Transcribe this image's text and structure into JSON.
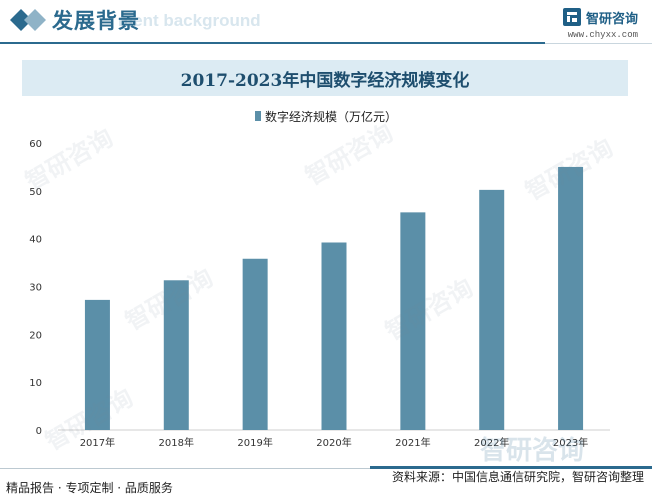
{
  "header": {
    "section_title": "发展背景",
    "section_title_ghost": "ment background",
    "brand_name": "智研咨询",
    "brand_url": "www.chyxx.com"
  },
  "chart_data": {
    "type": "bar",
    "title": "2017-2023年中国数字经济规模变化",
    "categories": [
      "2017年",
      "2018年",
      "2019年",
      "2020年",
      "2021年",
      "2022年",
      "2023年"
    ],
    "series": [
      {
        "name": "数字经济规模（万亿元）",
        "values": [
          27.2,
          31.3,
          35.8,
          39.2,
          45.5,
          50.2,
          55.0
        ],
        "color": "#5b8fa8"
      }
    ],
    "ylim": [
      0,
      60
    ],
    "yticks": [
      0,
      10,
      20,
      30,
      40,
      50,
      60
    ],
    "grid": false,
    "legend_position": "top-center"
  },
  "footer": {
    "left": "精品报告 · 专项定制 · 品质服务",
    "right": "资料来源：中国信息通信研究院，智研咨询整理"
  },
  "watermark_text": "智研咨询"
}
